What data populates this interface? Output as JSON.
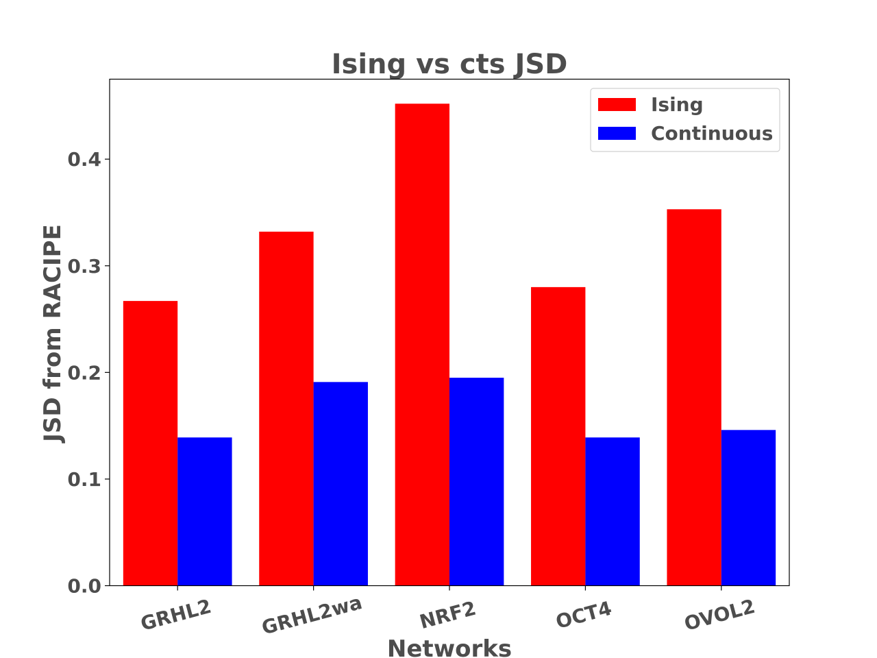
{
  "chart_data": {
    "type": "bar",
    "title": "Ising vs cts JSD",
    "xlabel": "Networks",
    "ylabel": "JSD from RACIPE",
    "categories": [
      "GRHL2",
      "GRHL2wa",
      "NRF2",
      "OCT4",
      "OVOL2"
    ],
    "series": [
      {
        "name": "Ising",
        "color": "#ff0000",
        "values": [
          0.267,
          0.332,
          0.452,
          0.28,
          0.353
        ]
      },
      {
        "name": "Continuous",
        "color": "#0000ff",
        "values": [
          0.139,
          0.191,
          0.195,
          0.139,
          0.146
        ]
      }
    ],
    "ylim": [
      0,
      0.475
    ],
    "yticks": [
      0.0,
      0.1,
      0.2,
      0.3,
      0.4
    ],
    "ytick_labels": [
      "0.0",
      "0.1",
      "0.2",
      "0.3",
      "0.4"
    ],
    "grid": false,
    "legend": "top-right"
  }
}
